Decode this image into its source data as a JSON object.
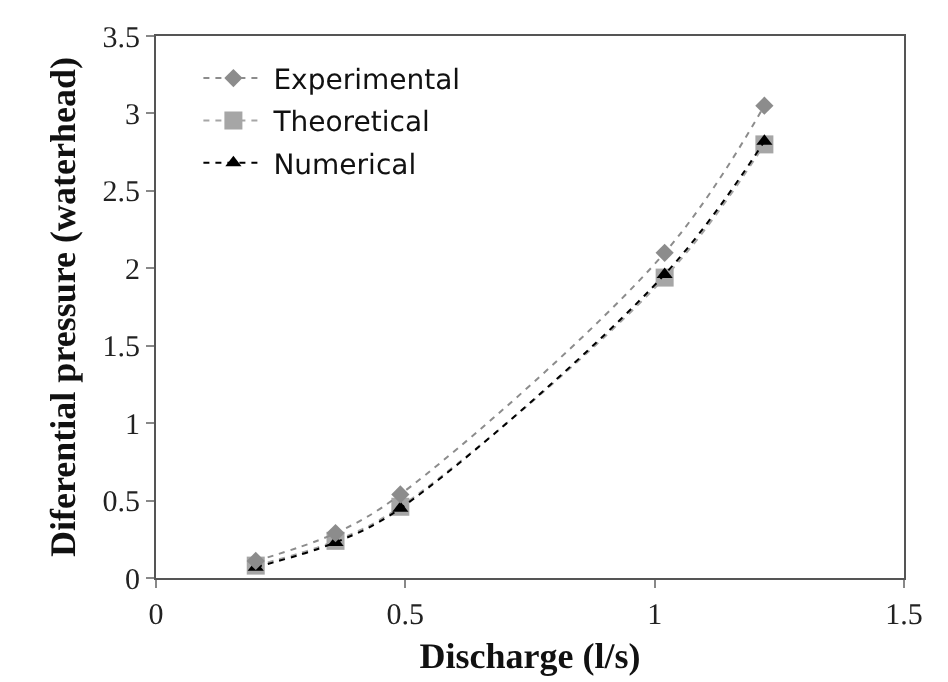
{
  "chart_data": {
    "type": "line",
    "xlabel": "Discharge (l/s)",
    "ylabel": "Diferential pressure (waterhead)",
    "x": [
      0.2,
      0.36,
      0.49,
      1.02,
      1.22
    ],
    "series": [
      {
        "name": "Experimental",
        "color": "#8c8c8c",
        "marker": "diamond",
        "values": [
          0.11,
          0.29,
          0.54,
          2.1,
          3.05
        ]
      },
      {
        "name": "Theoretical",
        "color": "#a6a6a6",
        "marker": "square",
        "values": [
          0.08,
          0.24,
          0.46,
          1.94,
          2.8
        ]
      },
      {
        "name": "Numerical",
        "color": "#000000",
        "marker": "triangle",
        "values": [
          0.07,
          0.23,
          0.45,
          1.96,
          2.82
        ]
      }
    ],
    "xlim": [
      0,
      1.5
    ],
    "xticks": [
      0,
      0.5,
      1,
      1.5
    ],
    "ylim": [
      0,
      3.5
    ],
    "yticks": [
      0,
      0.5,
      1,
      1.5,
      2,
      2.5,
      3,
      3.5
    ],
    "grid": false,
    "legend": "top left",
    "line_style": "dotted"
  }
}
